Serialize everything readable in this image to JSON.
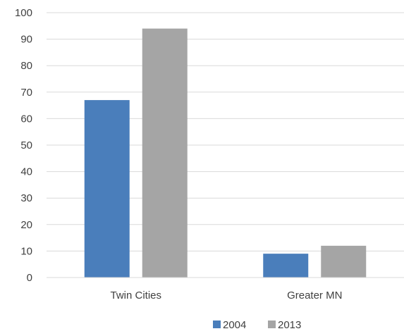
{
  "chart_data": {
    "type": "bar",
    "categories": [
      "Twin Cities",
      "Greater MN"
    ],
    "series": [
      {
        "name": "2004",
        "values": [
          67,
          9
        ],
        "color": "#4a7ebb"
      },
      {
        "name": "2013",
        "values": [
          94,
          12
        ],
        "color": "#a5a5a5"
      }
    ],
    "ylim": [
      0,
      100
    ],
    "yticks": [
      0,
      10,
      20,
      30,
      40,
      50,
      60,
      70,
      80,
      90,
      100
    ],
    "grid": true,
    "legend": "bottom",
    "title": "",
    "xlabel": "",
    "ylabel": ""
  }
}
